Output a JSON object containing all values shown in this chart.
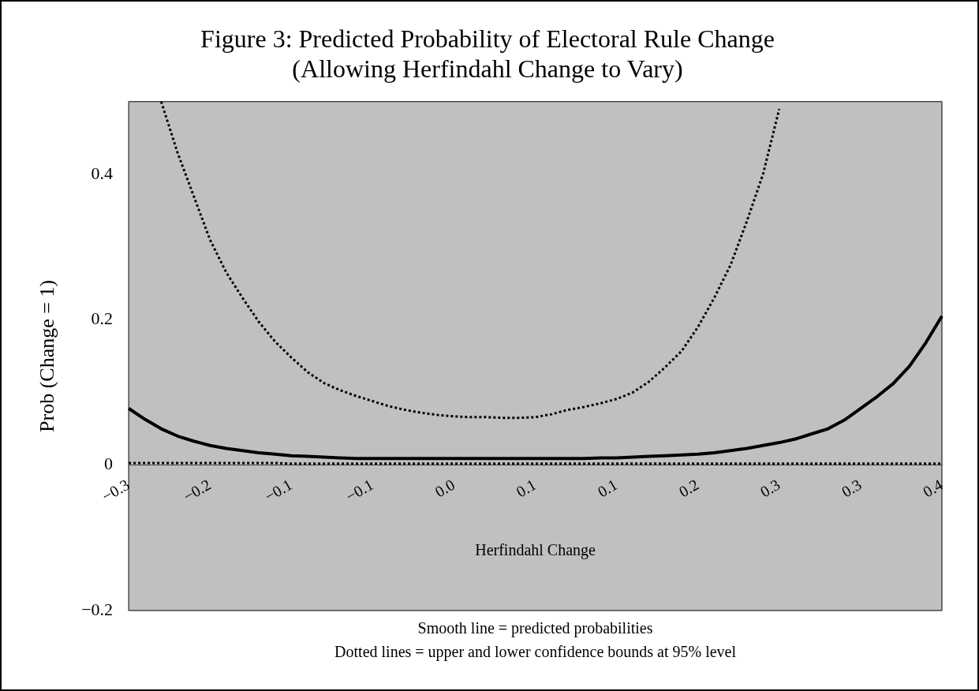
{
  "chart_data": {
    "type": "line",
    "title": "Figure 3: Predicted Probability of Electoral Rule Change\n(Allowing Herfindahl Change to Vary)",
    "xlabel": "Herfindahl Change",
    "ylabel": "Prob (Change = 1)",
    "categories": [
      "−0.3",
      null,
      null,
      null,
      null,
      "−0.2",
      null,
      null,
      null,
      null,
      "−0.1",
      null,
      null,
      null,
      null,
      "−0.1",
      null,
      null,
      null,
      null,
      "0.0",
      null,
      null,
      null,
      null,
      "0.1",
      null,
      null,
      null,
      null,
      "0.1",
      null,
      null,
      null,
      null,
      "0.2",
      null,
      null,
      null,
      null,
      "0.3",
      null,
      null,
      null,
      null,
      "0.3",
      null,
      null,
      null,
      null,
      "0.4"
    ],
    "series": [
      {
        "color": "#000000",
        "line_style": "solid",
        "values": [
          0.078,
          0.063,
          0.05,
          0.04,
          0.033,
          0.027,
          0.023,
          0.02,
          0.017,
          0.015,
          0.013,
          0.012,
          0.011,
          0.01,
          0.009,
          0.009,
          0.009,
          0.009,
          0.009,
          0.009,
          0.009,
          0.009,
          0.009,
          0.009,
          0.009,
          0.009,
          0.009,
          0.009,
          0.009,
          0.01,
          0.01,
          0.011,
          0.012,
          0.013,
          0.014,
          0.015,
          0.017,
          0.02,
          0.023,
          0.027,
          0.031,
          0.036,
          0.043,
          0.05,
          0.062,
          0.078,
          0.094,
          0.112,
          0.136,
          0.168,
          0.205
        ]
      },
      {
        "color": "#000000",
        "line_style": "dotted",
        "values": [
          null,
          null,
          0.5,
          0.43,
          0.37,
          0.31,
          0.265,
          0.23,
          0.197,
          0.17,
          0.148,
          0.128,
          0.113,
          0.103,
          0.095,
          0.088,
          0.081,
          0.076,
          0.072,
          0.069,
          0.067,
          0.066,
          0.066,
          0.065,
          0.065,
          0.066,
          0.07,
          0.076,
          0.08,
          0.085,
          0.091,
          0.1,
          0.115,
          0.135,
          0.157,
          0.19,
          0.23,
          0.275,
          0.335,
          0.4,
          0.49,
          null,
          null,
          null,
          null,
          null,
          null,
          null,
          null,
          null,
          null
        ]
      },
      {
        "color": "#000000",
        "line_style": "dotted",
        "values": [
          0.003,
          0.003,
          0.003,
          0.003,
          0.003,
          0.003,
          0.003,
          0.003,
          0.003,
          0.003,
          0.002,
          0.002,
          0.002,
          0.002,
          0.002,
          0.002,
          0.002,
          0.002,
          0.002,
          0.002,
          0.002,
          0.002,
          0.002,
          0.002,
          0.002,
          0.002,
          0.002,
          0.002,
          0.002,
          0.002,
          0.002,
          0.002,
          0.002,
          0.002,
          0.002,
          0.002,
          0.002,
          0.002,
          0.002,
          0.002,
          0.002,
          0.002,
          0.002,
          0.002,
          0.002,
          0.002,
          0.002,
          0.002,
          0.002,
          0.002,
          0.002
        ]
      }
    ],
    "ylim": [
      -0.2,
      0.5
    ],
    "yticks": [
      {
        "value": -0.2,
        "label": "−0.2"
      },
      0,
      0.2,
      0.4
    ],
    "grid": false,
    "legend": false,
    "marker": "none",
    "annotations": [
      "Smooth line = predicted probabilities",
      "Dotted lines = upper and lower confidence bounds at 95% level"
    ]
  }
}
